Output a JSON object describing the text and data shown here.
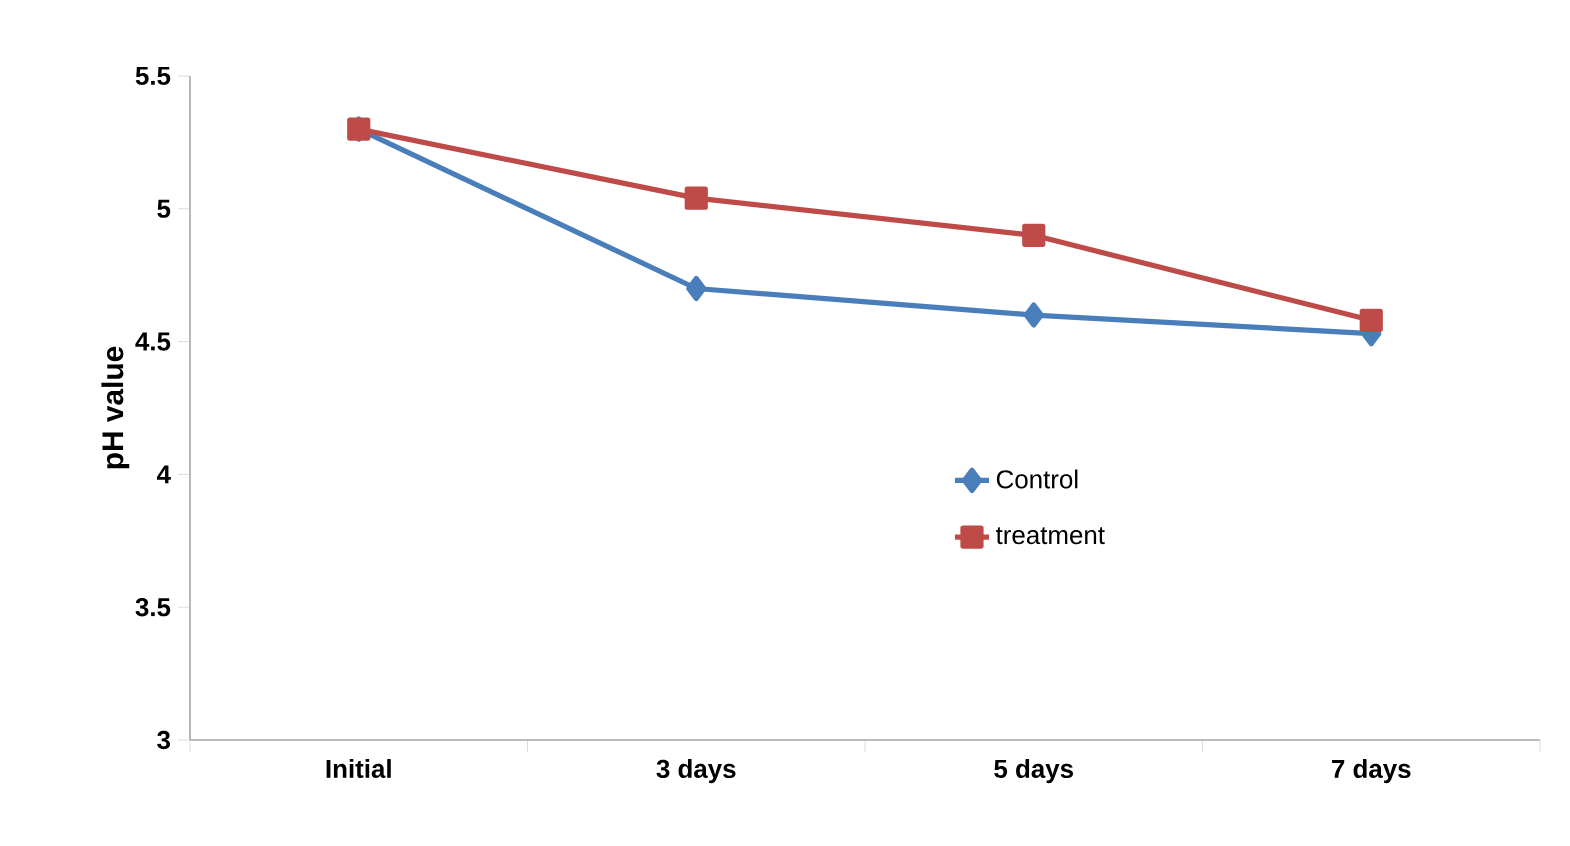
{
  "chart_data": {
    "type": "line",
    "ylabel": "pH value",
    "categories": [
      "Initial",
      "3 days",
      "5 days",
      "7 days"
    ],
    "series": [
      {
        "name": "Control",
        "color": "#4a7ebb",
        "marker": "diamond",
        "values": [
          5.3,
          4.7,
          4.6,
          4.53
        ]
      },
      {
        "name": "treatment",
        "color": "#be4b48",
        "marker": "square",
        "values": [
          5.3,
          5.04,
          4.9,
          4.58
        ]
      }
    ],
    "ylim": [
      3,
      5.5
    ],
    "yticks": [
      3,
      3.5,
      4,
      4.5,
      5,
      5.5
    ],
    "grid": false,
    "legend": "right",
    "line_style": "solid"
  }
}
